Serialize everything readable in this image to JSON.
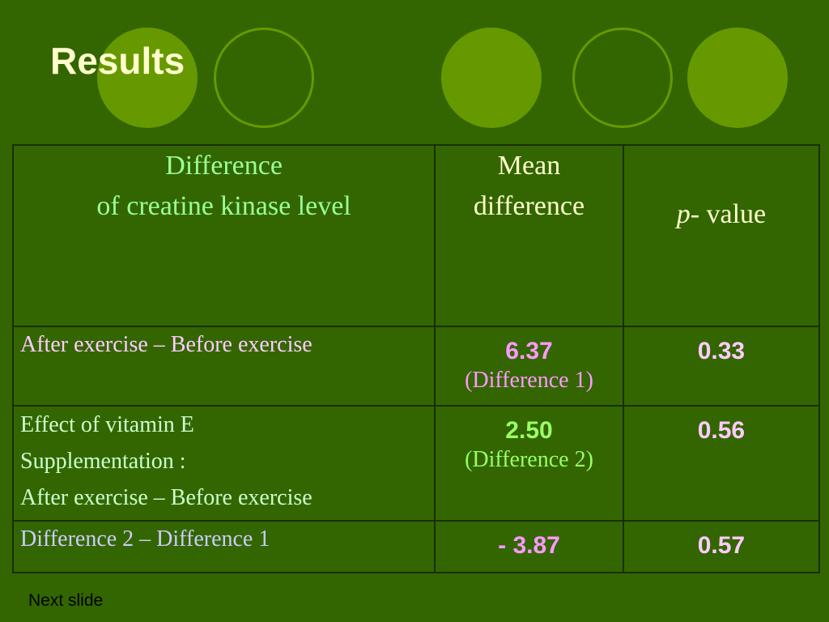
{
  "slide": {
    "title": "Results",
    "next_link": "Next slide"
  },
  "table": {
    "header": {
      "col1_line1": "Difference",
      "col1_line2": "of  creatine kinase level",
      "col2_line1": "Mean",
      "col2_line2": "difference",
      "col3_italic": "p",
      "col3_rest": "- value"
    },
    "rows": [
      {
        "label_lines": [
          "After exercise – Before exercise"
        ],
        "mean": "6.37",
        "mean_note": "(Difference 1)",
        "p_value": "0.33"
      },
      {
        "label_lines": [
          "Effect of  vitamin E",
          "Supplementation :",
          "After exercise – Before exercise"
        ],
        "mean": "2.50",
        "mean_note": "(Difference 2)",
        "p_value": "0.56"
      },
      {
        "label_lines": [
          "Difference 2 – Difference 1"
        ],
        "mean": "- 3.87",
        "p_value": "0.57"
      }
    ]
  },
  "colors": {
    "background": "#336600",
    "accent_circle": "#669900",
    "title": "#ffffcc"
  }
}
